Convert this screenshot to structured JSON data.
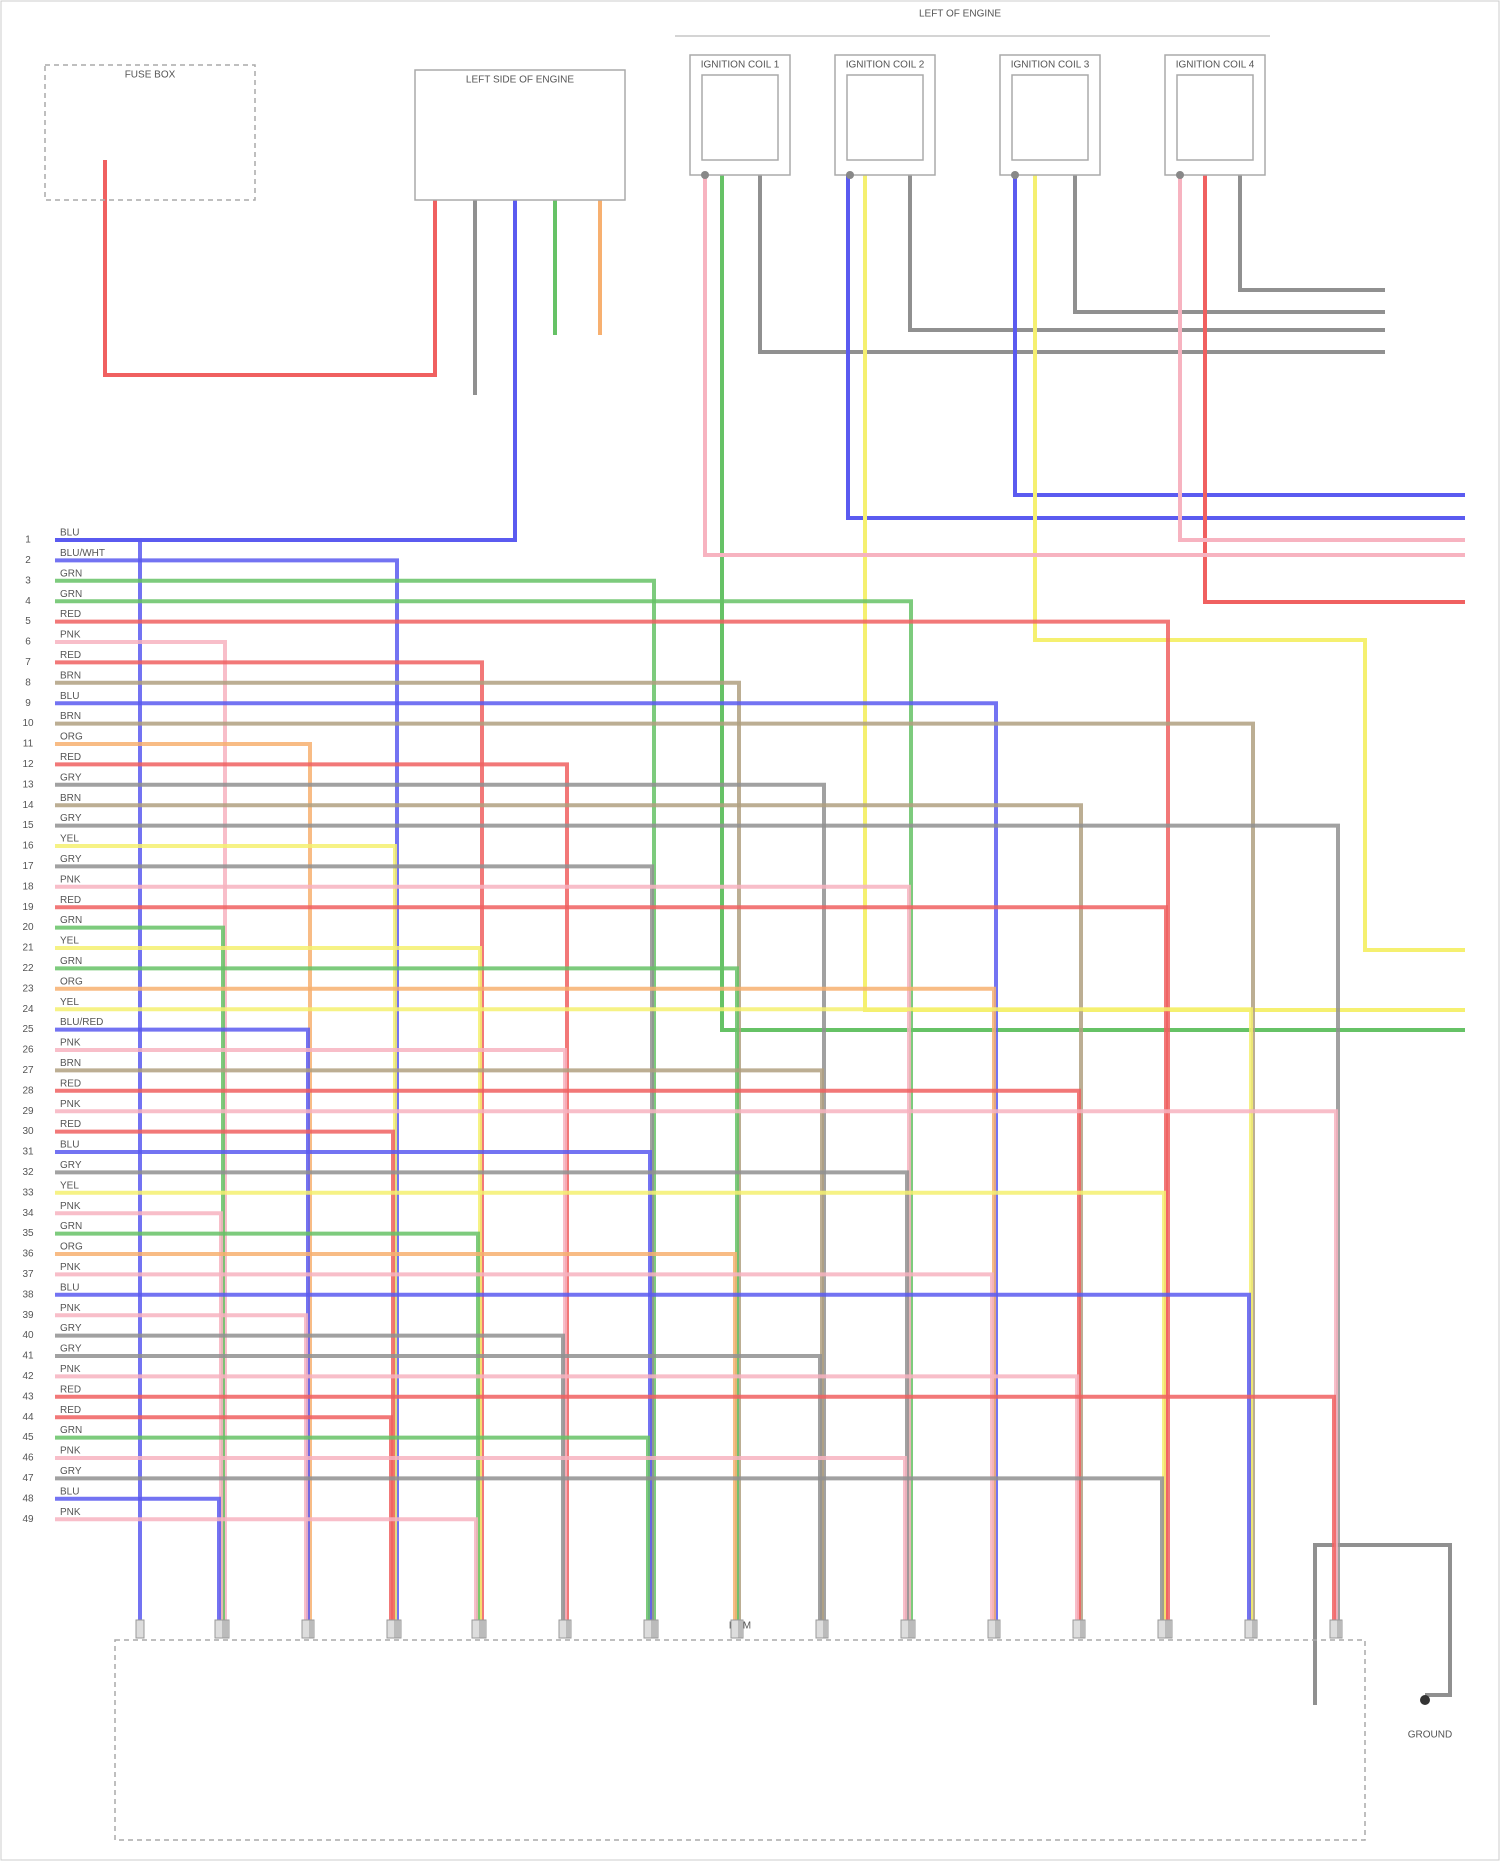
{
  "header": {
    "title": "LEFT OF ENGINE"
  },
  "components": [
    {
      "label": "FUSE BOX"
    },
    {
      "label": "LEFT SIDE OF ENGINE"
    },
    {
      "label": "IGNITION COIL 1"
    },
    {
      "label": "IGNITION COIL 2"
    },
    {
      "label": "IGNITION COIL 3"
    },
    {
      "label": "IGNITION COIL 4"
    },
    {
      "label": "ECM"
    },
    {
      "label": "GROUND"
    }
  ],
  "ecm_wires": [
    {
      "pin": 1,
      "label": "BLU",
      "color": "#5b5bf0"
    },
    {
      "pin": 2,
      "label": "BLU/WHT",
      "color": "#5b5bf0"
    },
    {
      "pin": 3,
      "label": "GRN",
      "color": "#66c266"
    },
    {
      "pin": 4,
      "label": "GRN",
      "color": "#66c266"
    },
    {
      "pin": 5,
      "label": "RED",
      "color": "#f06060"
    },
    {
      "pin": 6,
      "label": "PNK",
      "color": "#f7b3c0"
    },
    {
      "pin": 7,
      "label": "RED",
      "color": "#f06060"
    },
    {
      "pin": 8,
      "label": "BRN",
      "color": "#b0a080"
    },
    {
      "pin": 9,
      "label": "BLU",
      "color": "#5b5bf0"
    },
    {
      "pin": 10,
      "label": "BRN",
      "color": "#b0a080"
    },
    {
      "pin": 11,
      "label": "ORG",
      "color": "#f7b070"
    },
    {
      "pin": 12,
      "label": "RED",
      "color": "#f06060"
    },
    {
      "pin": 13,
      "label": "GRY",
      "color": "#909090"
    },
    {
      "pin": 14,
      "label": "BRN",
      "color": "#b0a080"
    },
    {
      "pin": 15,
      "label": "GRY",
      "color": "#909090"
    },
    {
      "pin": 16,
      "label": "YEL",
      "color": "#f5f070"
    },
    {
      "pin": 17,
      "label": "GRY",
      "color": "#909090"
    },
    {
      "pin": 18,
      "label": "PNK",
      "color": "#f7b3c0"
    },
    {
      "pin": 19,
      "label": "RED",
      "color": "#f06060"
    },
    {
      "pin": 20,
      "label": "GRN",
      "color": "#66c266"
    },
    {
      "pin": 21,
      "label": "YEL",
      "color": "#f5f070"
    },
    {
      "pin": 22,
      "label": "GRN",
      "color": "#66c266"
    },
    {
      "pin": 23,
      "label": "ORG",
      "color": "#f7b070"
    },
    {
      "pin": 24,
      "label": "YEL",
      "color": "#f5f070"
    },
    {
      "pin": 25,
      "label": "BLU/RED",
      "color": "#5b5bf0"
    },
    {
      "pin": 26,
      "label": "PNK",
      "color": "#f7b3c0"
    },
    {
      "pin": 27,
      "label": "BRN",
      "color": "#b0a080"
    },
    {
      "pin": 28,
      "label": "RED",
      "color": "#f06060"
    },
    {
      "pin": 29,
      "label": "PNK",
      "color": "#f7b3c0"
    },
    {
      "pin": 30,
      "label": "RED",
      "color": "#f06060"
    },
    {
      "pin": 31,
      "label": "BLU",
      "color": "#5b5bf0"
    },
    {
      "pin": 32,
      "label": "GRY",
      "color": "#909090"
    },
    {
      "pin": 33,
      "label": "YEL",
      "color": "#f5f070"
    },
    {
      "pin": 34,
      "label": "PNK",
      "color": "#f7b3c0"
    },
    {
      "pin": 35,
      "label": "GRN",
      "color": "#66c266"
    },
    {
      "pin": 36,
      "label": "ORG",
      "color": "#f7b070"
    },
    {
      "pin": 37,
      "label": "PNK",
      "color": "#f7b3c0"
    },
    {
      "pin": 38,
      "label": "BLU",
      "color": "#5b5bf0"
    },
    {
      "pin": 39,
      "label": "PNK",
      "color": "#f7b3c0"
    },
    {
      "pin": 40,
      "label": "GRY",
      "color": "#909090"
    },
    {
      "pin": 41,
      "label": "GRY",
      "color": "#909090"
    },
    {
      "pin": 42,
      "label": "PNK",
      "color": "#f7b3c0"
    },
    {
      "pin": 43,
      "label": "RED",
      "color": "#f06060"
    },
    {
      "pin": 44,
      "label": "RED",
      "color": "#f06060"
    },
    {
      "pin": 45,
      "label": "GRN",
      "color": "#66c266"
    },
    {
      "pin": 46,
      "label": "PNK",
      "color": "#f7b3c0"
    },
    {
      "pin": 47,
      "label": "GRY",
      "color": "#909090"
    },
    {
      "pin": 48,
      "label": "BLU",
      "color": "#5b5bf0"
    },
    {
      "pin": 49,
      "label": "PNK",
      "color": "#f7b3c0"
    }
  ]
}
